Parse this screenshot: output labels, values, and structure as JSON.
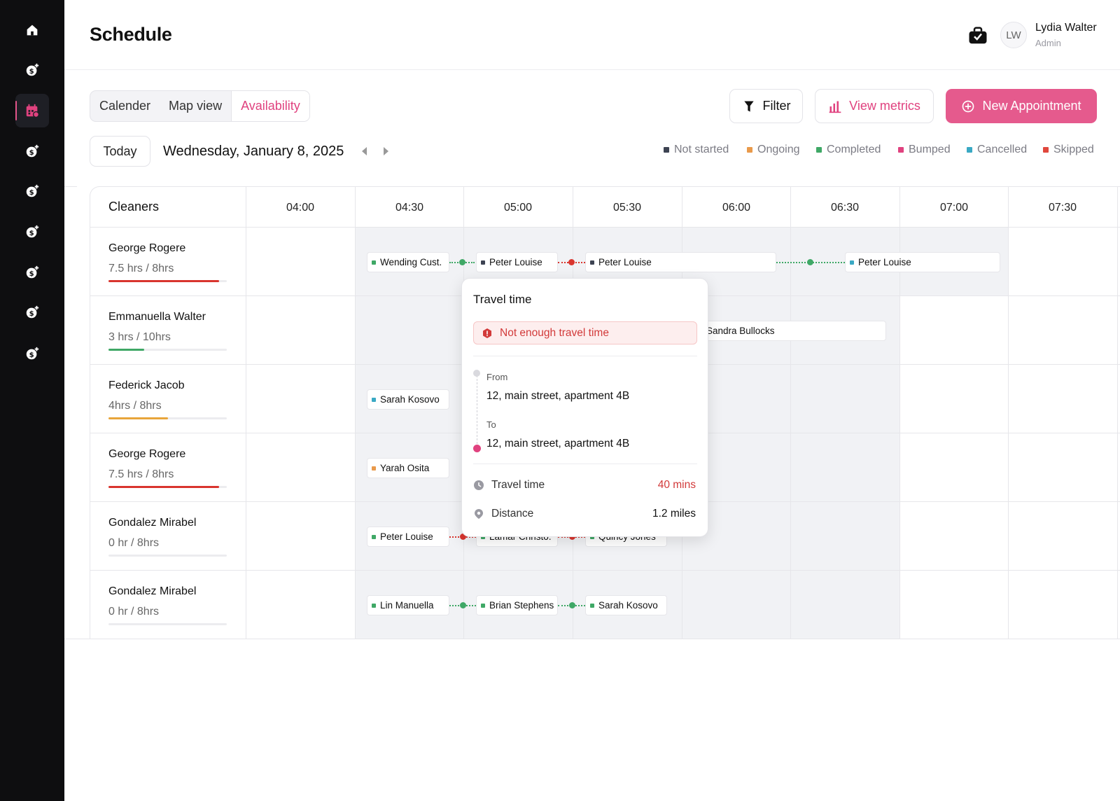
{
  "header": {
    "title": "Schedule",
    "user": {
      "initials": "LW",
      "name": "Lydia Walter",
      "role": "Admin"
    }
  },
  "sidebar": {
    "items": [
      {
        "icon": "home-icon"
      },
      {
        "icon": "dollar-sparkle-icon"
      },
      {
        "icon": "calendar-icon",
        "active": true
      },
      {
        "icon": "dollar-sparkle-icon"
      },
      {
        "icon": "dollar-sparkle-icon"
      },
      {
        "icon": "dollar-sparkle-icon"
      },
      {
        "icon": "dollar-sparkle-icon"
      },
      {
        "icon": "dollar-sparkle-icon"
      },
      {
        "icon": "dollar-sparkle-icon"
      }
    ]
  },
  "toolbar": {
    "tabs": [
      "Calender",
      "Map view",
      "Availability"
    ],
    "active_tab": "Availability",
    "filter_label": "Filter",
    "metrics_label": "View metrics",
    "new_label": "New Appointment",
    "today_label": "Today",
    "date": "Wednesday, January 8, 2025"
  },
  "colors": {
    "accent": "#e55a8d",
    "not_started": "#3d4352",
    "ongoing": "#e99a4b",
    "completed": "#3fa866",
    "bumped": "#e0427f",
    "cancelled": "#3aa9c4",
    "skipped": "#e0473d"
  },
  "legend": [
    "Not started",
    "Ongoing",
    "Completed",
    "Bumped",
    "Cancelled",
    "Skipped"
  ],
  "grid": {
    "cleaners_label": "Cleaners",
    "times": [
      "04:00",
      "04:30",
      "05:00",
      "05:30",
      "06:00",
      "06:30",
      "07:00",
      "07:30"
    ]
  },
  "cleaners": [
    {
      "name": "George Rogere",
      "hours": "7.5 hrs / 8hrs",
      "progress": 0.9375,
      "color": "#d9352e"
    },
    {
      "name": "Emmanuella Walter",
      "hours": "3 hrs / 10hrs",
      "progress": 0.3,
      "color": "#3fa866"
    },
    {
      "name": "Federick Jacob",
      "hours": "4hrs / 8hrs",
      "progress": 0.5,
      "color": "#e8a53b"
    },
    {
      "name": "George Rogere",
      "hours": "7.5 hrs / 8hrs",
      "progress": 0.9375,
      "color": "#d9352e"
    },
    {
      "name": "Gondalez Mirabel",
      "hours": "0 hr / 8hrs",
      "progress": 0,
      "color": "#d9352e"
    },
    {
      "name": "Gondalez Mirabel",
      "hours": "0 hr / 8hrs",
      "progress": 0,
      "color": "#d9352e"
    }
  ],
  "appointments": [
    {
      "row": 0,
      "label": "Wending Cust.",
      "status": "completed"
    },
    {
      "row": 0,
      "label": "Peter Louise",
      "status": "not_started"
    },
    {
      "row": 0,
      "label": "Peter Louise",
      "status": "not_started"
    },
    {
      "row": 0,
      "label": "Peter Louise",
      "status": "cancelled"
    },
    {
      "row": 1,
      "label": "Sandra Bullocks",
      "status": "not_started"
    },
    {
      "row": 2,
      "label": "Sarah Kosovo",
      "status": "cancelled"
    },
    {
      "row": 3,
      "label": "Yarah Osita",
      "status": "ongoing"
    },
    {
      "row": 4,
      "label": "Peter Louise",
      "status": "completed"
    },
    {
      "row": 4,
      "label": "Lamar Christo.",
      "status": "completed"
    },
    {
      "row": 4,
      "label": "Quincy Jones",
      "status": "completed"
    },
    {
      "row": 5,
      "label": "Lin Manuella",
      "status": "completed"
    },
    {
      "row": 5,
      "label": "Brian Stephens",
      "status": "completed"
    },
    {
      "row": 5,
      "label": "Sarah Kosovo",
      "status": "completed"
    }
  ],
  "travel_card": {
    "title": "Travel time",
    "alert": "Not enough travel time",
    "from_label": "From",
    "from_address": "12, main street, apartment 4B",
    "to_label": "To",
    "to_address": "12, main street, apartment 4B",
    "travel_time_label": "Travel time",
    "travel_time_value": "40 mins",
    "distance_label": "Distance",
    "distance_value": "1.2 miles"
  }
}
